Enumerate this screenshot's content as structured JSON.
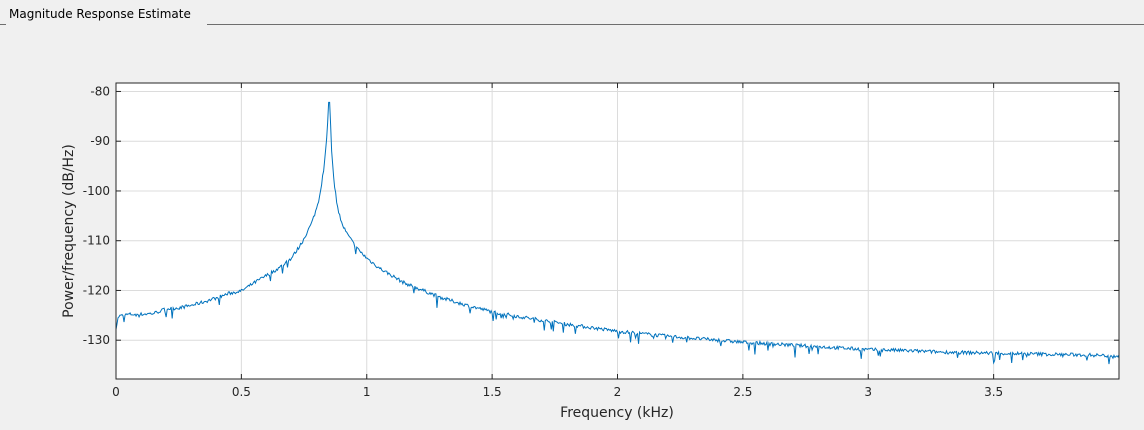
{
  "panel": {
    "title": "Magnitude Response Estimate"
  },
  "colors": {
    "line": "#0072bd",
    "grid": "#dcdcdc",
    "axes": "#262626",
    "background": "#f0f0f0",
    "plot_bg": "#ffffff"
  },
  "chart_data": {
    "type": "line",
    "title": "",
    "xlabel": "Frequency (kHz)",
    "ylabel": "Power/frequency (dB/Hz)",
    "xlim": [
      0,
      4.0
    ],
    "ylim": [
      -137.8,
      -78.3
    ],
    "xticks": [
      0,
      0.5,
      1,
      1.5,
      2,
      2.5,
      3,
      3.5
    ],
    "xtick_labels": [
      "0",
      "0.5",
      "1",
      "1.5",
      "2",
      "2.5",
      "3",
      "3.5"
    ],
    "yticks": [
      -80,
      -90,
      -100,
      -110,
      -120,
      -130
    ],
    "ytick_labels": [
      "-80",
      "-90",
      "-100",
      "-110",
      "-120",
      "-130"
    ],
    "grid": true,
    "series": [
      {
        "name": "",
        "x": [
          0,
          0.01,
          0.05,
          0.1,
          0.15,
          0.2,
          0.25,
          0.3,
          0.35,
          0.4,
          0.45,
          0.5,
          0.55,
          0.6,
          0.65,
          0.7,
          0.72,
          0.74,
          0.76,
          0.78,
          0.8,
          0.81,
          0.82,
          0.83,
          0.84,
          0.845,
          0.85,
          0.855,
          0.86,
          0.87,
          0.88,
          0.89,
          0.9,
          0.92,
          0.94,
          0.96,
          0.98,
          1.0,
          1.05,
          1.1,
          1.15,
          1.2,
          1.25,
          1.3,
          1.4,
          1.5,
          1.6,
          1.7,
          1.8,
          1.9,
          2.0,
          2.1,
          2.2,
          2.3,
          2.4,
          2.5,
          2.6,
          2.7,
          2.8,
          2.9,
          3.0,
          3.1,
          3.2,
          3.3,
          3.4,
          3.5,
          3.6,
          3.7,
          3.8,
          3.9,
          3.95,
          4.0
        ],
        "values": [
          -127.5,
          -125.2,
          -124.8,
          -124.8,
          -124.6,
          -123.7,
          -123.5,
          -123.0,
          -122.3,
          -121.5,
          -120.6,
          -120.1,
          -118.5,
          -117.0,
          -115.5,
          -113.5,
          -112.0,
          -110.5,
          -108.5,
          -106.5,
          -103.5,
          -101.5,
          -98.5,
          -95.0,
          -89.5,
          -85.5,
          -80.0,
          -85.5,
          -92.0,
          -98.5,
          -102.0,
          -104.5,
          -106.5,
          -108.5,
          -110.0,
          -111.5,
          -112.5,
          -113.5,
          -115.5,
          -117.0,
          -118.5,
          -119.5,
          -120.5,
          -121.5,
          -123.0,
          -124.3,
          -125.2,
          -126.0,
          -126.8,
          -127.5,
          -128.2,
          -128.7,
          -129.2,
          -129.6,
          -130.0,
          -130.4,
          -130.7,
          -131.0,
          -131.3,
          -131.6,
          -131.9,
          -132.0,
          -132.2,
          -132.4,
          -132.5,
          -132.6,
          -132.7,
          -132.8,
          -132.9,
          -133.0,
          -133.1,
          -133.2
        ]
      }
    ]
  }
}
